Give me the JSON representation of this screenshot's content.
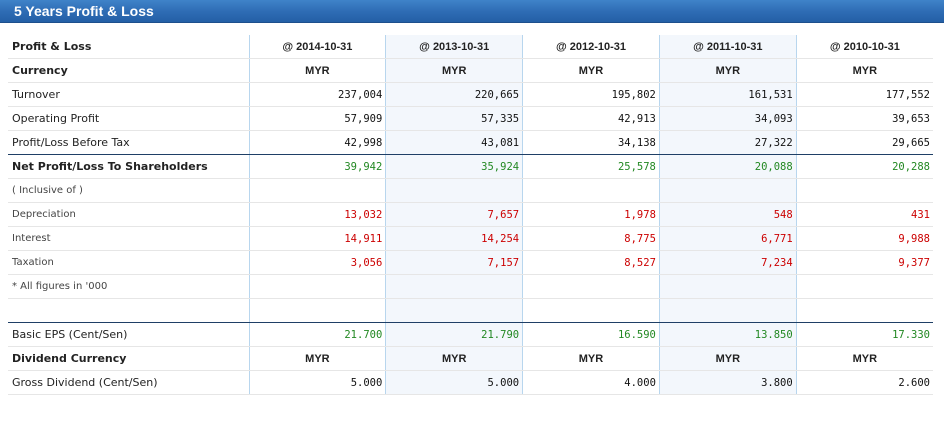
{
  "header": {
    "title": "5 Years Profit & Loss"
  },
  "table": {
    "label_header": "Profit & Loss",
    "years": [
      "@ 2014-10-31",
      "@ 2013-10-31",
      "@ 2012-10-31",
      "@ 2011-10-31",
      "@ 2010-10-31"
    ],
    "currency": {
      "label": "Currency",
      "values": [
        "MYR",
        "MYR",
        "MYR",
        "MYR",
        "MYR"
      ]
    },
    "turnover": {
      "label": "Turnover",
      "values": [
        "237,004",
        "220,665",
        "195,802",
        "161,531",
        "177,552"
      ]
    },
    "operating_profit": {
      "label": "Operating Profit",
      "values": [
        "57,909",
        "57,335",
        "42,913",
        "34,093",
        "39,653"
      ]
    },
    "profit_before_tax": {
      "label": "Profit/Loss Before Tax",
      "values": [
        "42,998",
        "43,081",
        "34,138",
        "27,322",
        "29,665"
      ]
    },
    "net_profit": {
      "label": "Net Profit/Loss To Shareholders",
      "values": [
        "39,942",
        "35,924",
        "25,578",
        "20,088",
        "20,288"
      ]
    },
    "inclusive_of": {
      "label": "( Inclusive of )"
    },
    "depreciation": {
      "label": "Depreciation",
      "values": [
        "13,032",
        "7,657",
        "1,978",
        "548",
        "431"
      ]
    },
    "interest": {
      "label": "Interest",
      "values": [
        "14,911",
        "14,254",
        "8,775",
        "6,771",
        "9,988"
      ]
    },
    "taxation": {
      "label": "Taxation",
      "values": [
        "3,056",
        "7,157",
        "8,527",
        "7,234",
        "9,377"
      ]
    },
    "figures_note": {
      "label": "* All figures in '000"
    },
    "basic_eps": {
      "label": "Basic EPS (Cent/Sen)",
      "values": [
        "21.700",
        "21.790",
        "16.590",
        "13.850",
        "17.330"
      ]
    },
    "dividend_currency": {
      "label": "Dividend Currency",
      "values": [
        "MYR",
        "MYR",
        "MYR",
        "MYR",
        "MYR"
      ]
    },
    "gross_dividend": {
      "label": "Gross Dividend (Cent/Sen)",
      "values": [
        "5.000",
        "5.000",
        "4.000",
        "3.800",
        "2.600"
      ]
    }
  }
}
